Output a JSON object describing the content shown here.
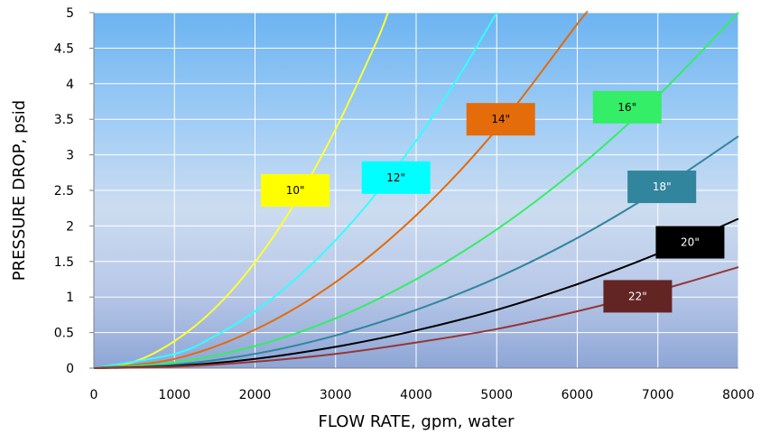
{
  "chart_data": {
    "type": "line",
    "title": "",
    "xlabel": "FLOW RATE, gpm, water",
    "ylabel": "PRESSURE DROP, psid",
    "xlim": [
      0,
      8000
    ],
    "ylim": [
      0,
      5
    ],
    "x_ticks": [
      "0",
      "1000",
      "2000",
      "3000",
      "4000",
      "5000",
      "6000",
      "7000",
      "8000"
    ],
    "y_ticks": [
      "0",
      "0.5",
      "1",
      "1.5",
      "2",
      "2.5",
      "3",
      "3.5",
      "4",
      "4.5",
      "5"
    ],
    "grid": true,
    "background": "sky-blue vertical gradient",
    "series": [
      {
        "name": "10\"",
        "color": "#ffff33",
        "label_bg": "#ffff00",
        "label_fg": "#000000",
        "label_at": [
          2500,
          2.5
        ],
        "points": [
          [
            0,
            0
          ],
          [
            500,
            0.09
          ],
          [
            1000,
            0.38
          ],
          [
            1500,
            0.84
          ],
          [
            2000,
            1.49
          ],
          [
            2500,
            2.33
          ],
          [
            3000,
            3.36
          ],
          [
            3500,
            4.57
          ],
          [
            3650,
            5.0
          ]
        ]
      },
      {
        "name": "12\"",
        "color": "#33ffff",
        "label_bg": "#00ffff",
        "label_fg": "#000000",
        "label_at": [
          3750,
          2.68
        ],
        "points": [
          [
            0,
            0
          ],
          [
            1000,
            0.2
          ],
          [
            1500,
            0.45
          ],
          [
            2000,
            0.8
          ],
          [
            2500,
            1.25
          ],
          [
            3000,
            1.8
          ],
          [
            3500,
            2.45
          ],
          [
            4000,
            3.2
          ],
          [
            4500,
            4.05
          ],
          [
            5000,
            5.0
          ]
        ]
      },
      {
        "name": "14\"",
        "color": "#e26b0a",
        "label_bg": "#e46c0a",
        "label_fg": "#000000",
        "label_at": [
          5050,
          3.5
        ],
        "points": [
          [
            0,
            0
          ],
          [
            1000,
            0.13
          ],
          [
            2000,
            0.54
          ],
          [
            3000,
            1.21
          ],
          [
            4000,
            2.15
          ],
          [
            5000,
            3.36
          ],
          [
            6000,
            4.84
          ],
          [
            6120,
            5.0
          ]
        ]
      },
      {
        "name": "16\"",
        "color": "#33ee66",
        "label_bg": "#33ee66",
        "label_fg": "#000000",
        "label_at": [
          6620,
          3.67
        ],
        "points": [
          [
            0,
            0
          ],
          [
            1000,
            0.08
          ],
          [
            2000,
            0.31
          ],
          [
            3000,
            0.7
          ],
          [
            4000,
            1.25
          ],
          [
            5000,
            1.95
          ],
          [
            6000,
            2.81
          ],
          [
            7000,
            3.83
          ],
          [
            8000,
            5.0
          ]
        ]
      },
      {
        "name": "18\"",
        "color": "#31859c",
        "label_bg": "#31859c",
        "label_fg": "#ffffff",
        "label_at": [
          7050,
          2.55
        ],
        "points": [
          [
            0,
            0
          ],
          [
            1000,
            0.05
          ],
          [
            2000,
            0.2
          ],
          [
            3000,
            0.46
          ],
          [
            4000,
            0.82
          ],
          [
            5000,
            1.27
          ],
          [
            6000,
            1.83
          ],
          [
            7000,
            2.5
          ],
          [
            8000,
            3.26
          ]
        ]
      },
      {
        "name": "20\"",
        "color": "#000000",
        "label_bg": "#000000",
        "label_fg": "#ffffff",
        "label_at": [
          7400,
          1.77
        ],
        "points": [
          [
            0,
            0
          ],
          [
            1000,
            0.03
          ],
          [
            2000,
            0.13
          ],
          [
            3000,
            0.3
          ],
          [
            4000,
            0.53
          ],
          [
            5000,
            0.82
          ],
          [
            6000,
            1.18
          ],
          [
            7000,
            1.61
          ],
          [
            8000,
            2.1
          ]
        ]
      },
      {
        "name": "22\"",
        "color": "#953735",
        "label_bg": "#632523",
        "label_fg": "#ffffff",
        "label_at": [
          6750,
          1.01
        ],
        "points": [
          [
            0,
            0
          ],
          [
            1000,
            0.02
          ],
          [
            2000,
            0.09
          ],
          [
            3000,
            0.2
          ],
          [
            4000,
            0.36
          ],
          [
            5000,
            0.55
          ],
          [
            6000,
            0.8
          ],
          [
            7000,
            1.09
          ],
          [
            8000,
            1.42
          ]
        ]
      }
    ]
  }
}
